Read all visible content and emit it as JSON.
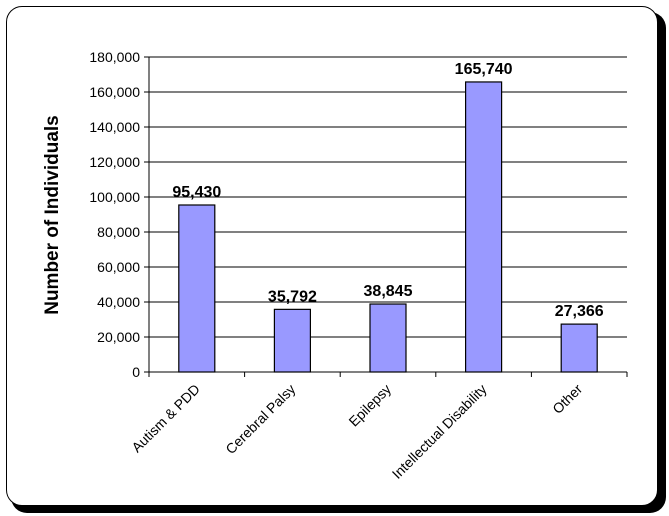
{
  "chart_data": {
    "type": "bar",
    "title": "",
    "xlabel": "",
    "ylabel": "Number of Individuals",
    "categories": [
      "Autism & PDD",
      "Cerebral Palsy",
      "Epilepsy",
      "Intellectual Disability",
      "Other"
    ],
    "values": [
      95430,
      35792,
      38845,
      165740,
      27366
    ],
    "data_labels": [
      "95,430",
      "35,792",
      "38,845",
      "165,740",
      "27,366"
    ],
    "ylim": [
      0,
      180000
    ],
    "yticks": [
      0,
      20000,
      40000,
      60000,
      80000,
      100000,
      120000,
      140000,
      160000,
      180000
    ],
    "ytick_labels": [
      "0",
      "20,000",
      "40,000",
      "60,000",
      "80,000",
      "100,000",
      "120,000",
      "140,000",
      "160,000",
      "180,000"
    ],
    "grid": true,
    "legend": "none",
    "colors": {
      "bar_fill": "#9999ff",
      "bar_stroke": "#000000",
      "gridline": "#000000"
    }
  }
}
